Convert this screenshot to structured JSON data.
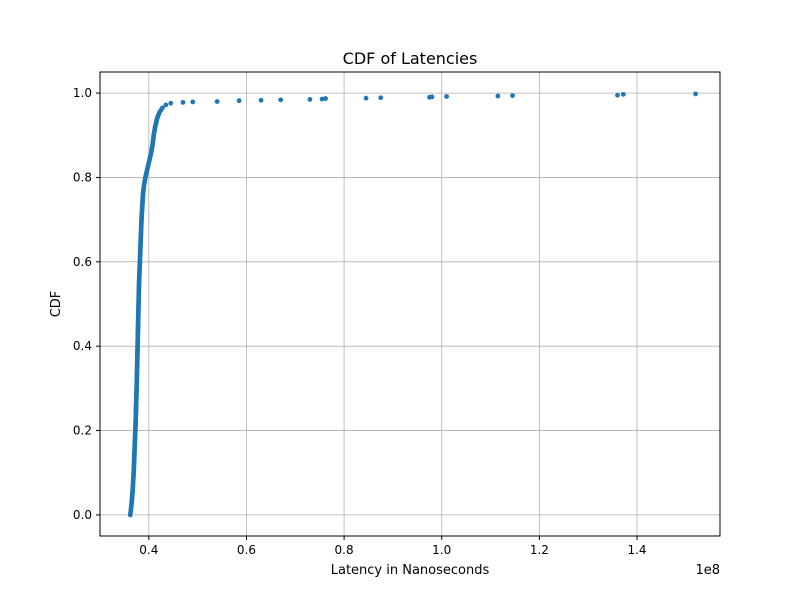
{
  "chart_data": {
    "type": "scatter",
    "title": "CDF of Latencies",
    "xlabel": "Latency in Nanoseconds",
    "ylabel": "CDF",
    "x_offset_label": "1e8",
    "xlim": [
      0.3,
      1.57
    ],
    "ylim": [
      -0.05,
      1.05
    ],
    "xticks": [
      0.4,
      0.6,
      0.8,
      1.0,
      1.2,
      1.4
    ],
    "xtick_labels": [
      "0.4",
      "0.6",
      "0.8",
      "1.0",
      "1.2",
      "1.4"
    ],
    "yticks": [
      0.0,
      0.2,
      0.4,
      0.6,
      0.8,
      1.0
    ],
    "ytick_labels": [
      "0.0",
      "0.2",
      "0.4",
      "0.6",
      "0.8",
      "1.0"
    ],
    "grid": true,
    "marker_color": "#1f77b4",
    "series": [
      {
        "name": "",
        "points": [
          [
            0.362,
            0.0
          ],
          [
            0.363,
            0.01
          ],
          [
            0.364,
            0.02
          ],
          [
            0.365,
            0.03
          ],
          [
            0.366,
            0.045
          ],
          [
            0.367,
            0.06
          ],
          [
            0.368,
            0.08
          ],
          [
            0.369,
            0.1
          ],
          [
            0.37,
            0.13
          ],
          [
            0.371,
            0.16
          ],
          [
            0.372,
            0.19
          ],
          [
            0.373,
            0.22
          ],
          [
            0.374,
            0.26
          ],
          [
            0.375,
            0.3
          ],
          [
            0.376,
            0.35
          ],
          [
            0.377,
            0.4
          ],
          [
            0.378,
            0.45
          ],
          [
            0.379,
            0.5
          ],
          [
            0.38,
            0.55
          ],
          [
            0.381,
            0.58
          ],
          [
            0.382,
            0.61
          ],
          [
            0.383,
            0.64
          ],
          [
            0.384,
            0.67
          ],
          [
            0.385,
            0.7
          ],
          [
            0.386,
            0.72
          ],
          [
            0.387,
            0.74
          ],
          [
            0.388,
            0.76
          ],
          [
            0.39,
            0.78
          ],
          [
            0.393,
            0.8
          ],
          [
            0.397,
            0.82
          ],
          [
            0.401,
            0.84
          ],
          [
            0.405,
            0.86
          ],
          [
            0.408,
            0.88
          ],
          [
            0.41,
            0.9
          ],
          [
            0.413,
            0.92
          ],
          [
            0.417,
            0.94
          ],
          [
            0.422,
            0.955
          ],
          [
            0.428,
            0.965
          ],
          [
            0.435,
            0.972
          ],
          [
            0.445,
            0.976
          ],
          [
            0.47,
            0.978
          ],
          [
            0.49,
            0.979
          ],
          [
            0.54,
            0.98
          ],
          [
            0.585,
            0.982
          ],
          [
            0.63,
            0.983
          ],
          [
            0.67,
            0.984
          ],
          [
            0.73,
            0.985
          ],
          [
            0.755,
            0.986
          ],
          [
            0.762,
            0.987
          ],
          [
            0.845,
            0.988
          ],
          [
            0.875,
            0.989
          ],
          [
            0.975,
            0.99
          ],
          [
            0.98,
            0.991
          ],
          [
            1.01,
            0.992
          ],
          [
            1.115,
            0.993
          ],
          [
            1.145,
            0.994
          ],
          [
            1.36,
            0.995
          ],
          [
            1.372,
            0.997
          ],
          [
            1.52,
            0.998
          ]
        ]
      }
    ]
  }
}
